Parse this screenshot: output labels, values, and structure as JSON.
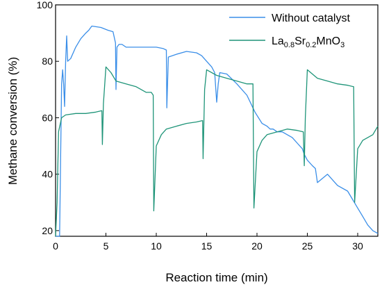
{
  "chart_data": {
    "type": "line",
    "xlabel": "Reaction time (min)",
    "ylabel": "Methane conversion (%)",
    "xlim": [
      0,
      32
    ],
    "ylim": [
      18,
      100
    ],
    "xticks": [
      0,
      5,
      10,
      15,
      20,
      25,
      30
    ],
    "yticks": [
      20,
      40,
      60,
      80,
      100
    ],
    "grid": false,
    "legend_position": "top-right",
    "series": [
      {
        "name": "Without catalyst",
        "legend": {
          "base": "Without catalyst"
        },
        "color": "#3a8ee8",
        "x": [
          0.0,
          0.2,
          0.4,
          0.6,
          0.7,
          0.8,
          0.9,
          1.0,
          1.1,
          1.2,
          1.5,
          2.0,
          2.5,
          3.0,
          3.3,
          3.6,
          4.5,
          5.2,
          5.7,
          5.95,
          6.0,
          6.1,
          6.3,
          6.6,
          7.0,
          8.0,
          9.0,
          10.0,
          10.7,
          11.0,
          11.05,
          11.2,
          11.6,
          12.0,
          13.0,
          14.0,
          14.5,
          15.0,
          15.5,
          15.8,
          16.0,
          16.15,
          16.3,
          17.0,
          18.0,
          19.0,
          19.8,
          20.5,
          21.0,
          21.3,
          21.6,
          22.0,
          22.5,
          23.0,
          23.5,
          24.0,
          24.5,
          24.7,
          25.0,
          25.5,
          25.8,
          26.0,
          27.0,
          28.0,
          29.0,
          30.0,
          30.5,
          31.0,
          31.5,
          32.0
        ],
        "y": [
          18,
          18,
          18,
          72,
          77,
          72,
          64,
          80,
          89,
          80,
          81,
          85,
          88,
          90,
          91,
          92.5,
          92,
          91,
          90.5,
          86.5,
          70,
          85,
          86,
          86,
          85,
          85,
          85,
          85,
          84.5,
          84,
          63.5,
          81.5,
          82,
          82.5,
          83.5,
          83,
          82,
          80,
          78,
          76,
          65.5,
          72,
          76,
          75.5,
          72,
          68,
          62,
          58,
          57,
          56,
          56,
          55,
          55,
          54,
          53,
          51,
          49,
          47,
          45,
          43,
          42,
          37,
          40,
          36,
          34,
          28,
          25,
          22,
          20,
          19
        ]
      },
      {
        "name": "La0.8Sr0.2MnO3",
        "legend": {
          "base": "La",
          "sub1": "0.8",
          "mid": "Sr",
          "sub2": "0.2",
          "tail": "MnO",
          "sub3": "3"
        },
        "color": "#1e9478",
        "x": [
          0.0,
          0.15,
          0.3,
          0.6,
          1.0,
          2.0,
          3.0,
          4.0,
          4.6,
          4.65,
          4.75,
          5.0,
          5.5,
          6.0,
          7.0,
          8.0,
          9.0,
          9.5,
          9.7,
          9.75,
          10.0,
          10.5,
          11.0,
          12.0,
          13.0,
          14.0,
          14.6,
          14.65,
          14.8,
          15.0,
          16.0,
          17.0,
          18.0,
          19.0,
          19.6,
          19.7,
          20.0,
          20.5,
          21.0,
          22.0,
          23.0,
          24.0,
          24.6,
          24.7,
          24.8,
          25.0,
          26.0,
          27.0,
          28.0,
          29.0,
          29.6,
          29.7,
          30.0,
          30.5,
          31.0,
          31.5,
          32.0
        ],
        "y": [
          18,
          30,
          55,
          60,
          61,
          61.5,
          61.5,
          62,
          62.5,
          50.5,
          65,
          78,
          76,
          73,
          72,
          71,
          69,
          69,
          68,
          27,
          50,
          54,
          56,
          57,
          58,
          58.5,
          59,
          45.5,
          70,
          77,
          75,
          74,
          73,
          72,
          72,
          28,
          48,
          52,
          54,
          55,
          56,
          55.5,
          55,
          43,
          60,
          77,
          74,
          73,
          72,
          71.5,
          71,
          30,
          49,
          52,
          53,
          54,
          57
        ]
      }
    ]
  }
}
